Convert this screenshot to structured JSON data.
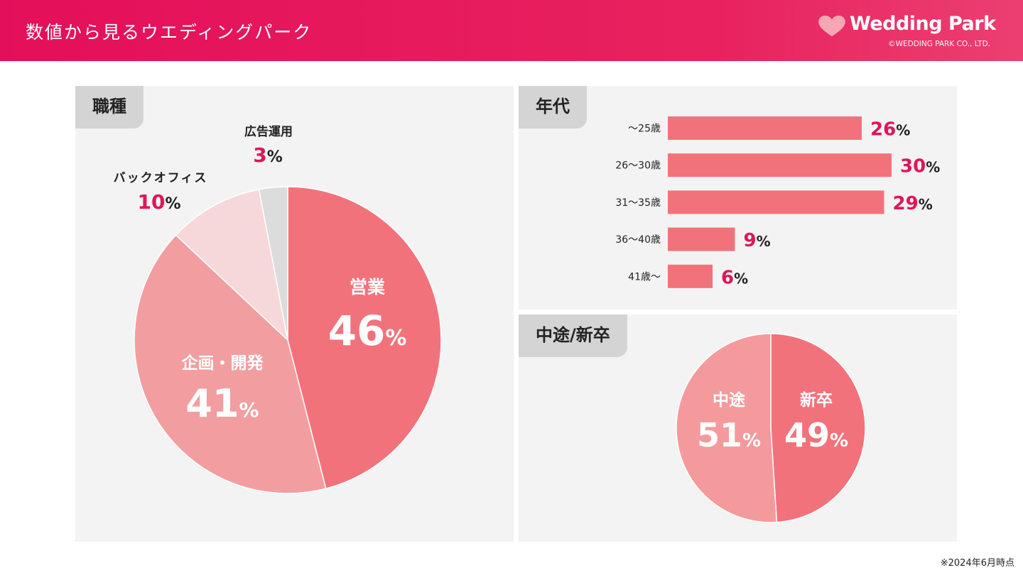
{
  "header": {
    "title": "数値から見るウエディングパーク",
    "logo_text": "Wedding Park",
    "copyright": "©WEDDING PARK CO., LTD."
  },
  "panels": {
    "job": {
      "tag": "職種"
    },
    "age": {
      "tag": "年代"
    },
    "hire": {
      "tag": "中途/新卒"
    }
  },
  "footnote": "※2024年6月時点",
  "colors": {
    "header": "#e40f5a",
    "value_accent": "#e0145a",
    "bar": "#f2727b",
    "slice_sales": "#f2727b",
    "slice_dev": "#f29ea0",
    "slice_backoffice": "#f7d8da",
    "slice_ads": "#dcdcdc",
    "slice_midcareer": "#f59a9c",
    "slice_newgrad": "#f2727b"
  },
  "chart_data": [
    {
      "type": "pie",
      "title": "職種",
      "unit": "%",
      "slices": [
        {
          "label": "営業",
          "value": 46
        },
        {
          "label": "企画・開発",
          "value": 41
        },
        {
          "label": "バックオフィス",
          "value": 10
        },
        {
          "label": "広告運用",
          "value": 3
        }
      ]
    },
    {
      "type": "bar",
      "orientation": "horizontal",
      "title": "年代",
      "unit": "%",
      "categories": [
        "〜25歳",
        "26〜30歳",
        "31〜35歳",
        "36〜40歳",
        "41歳〜"
      ],
      "values": [
        26,
        30,
        29,
        9,
        6
      ]
    },
    {
      "type": "pie",
      "title": "中途/新卒",
      "unit": "%",
      "slices": [
        {
          "label": "新卒",
          "value": 49
        },
        {
          "label": "中途",
          "value": 51
        }
      ]
    }
  ]
}
